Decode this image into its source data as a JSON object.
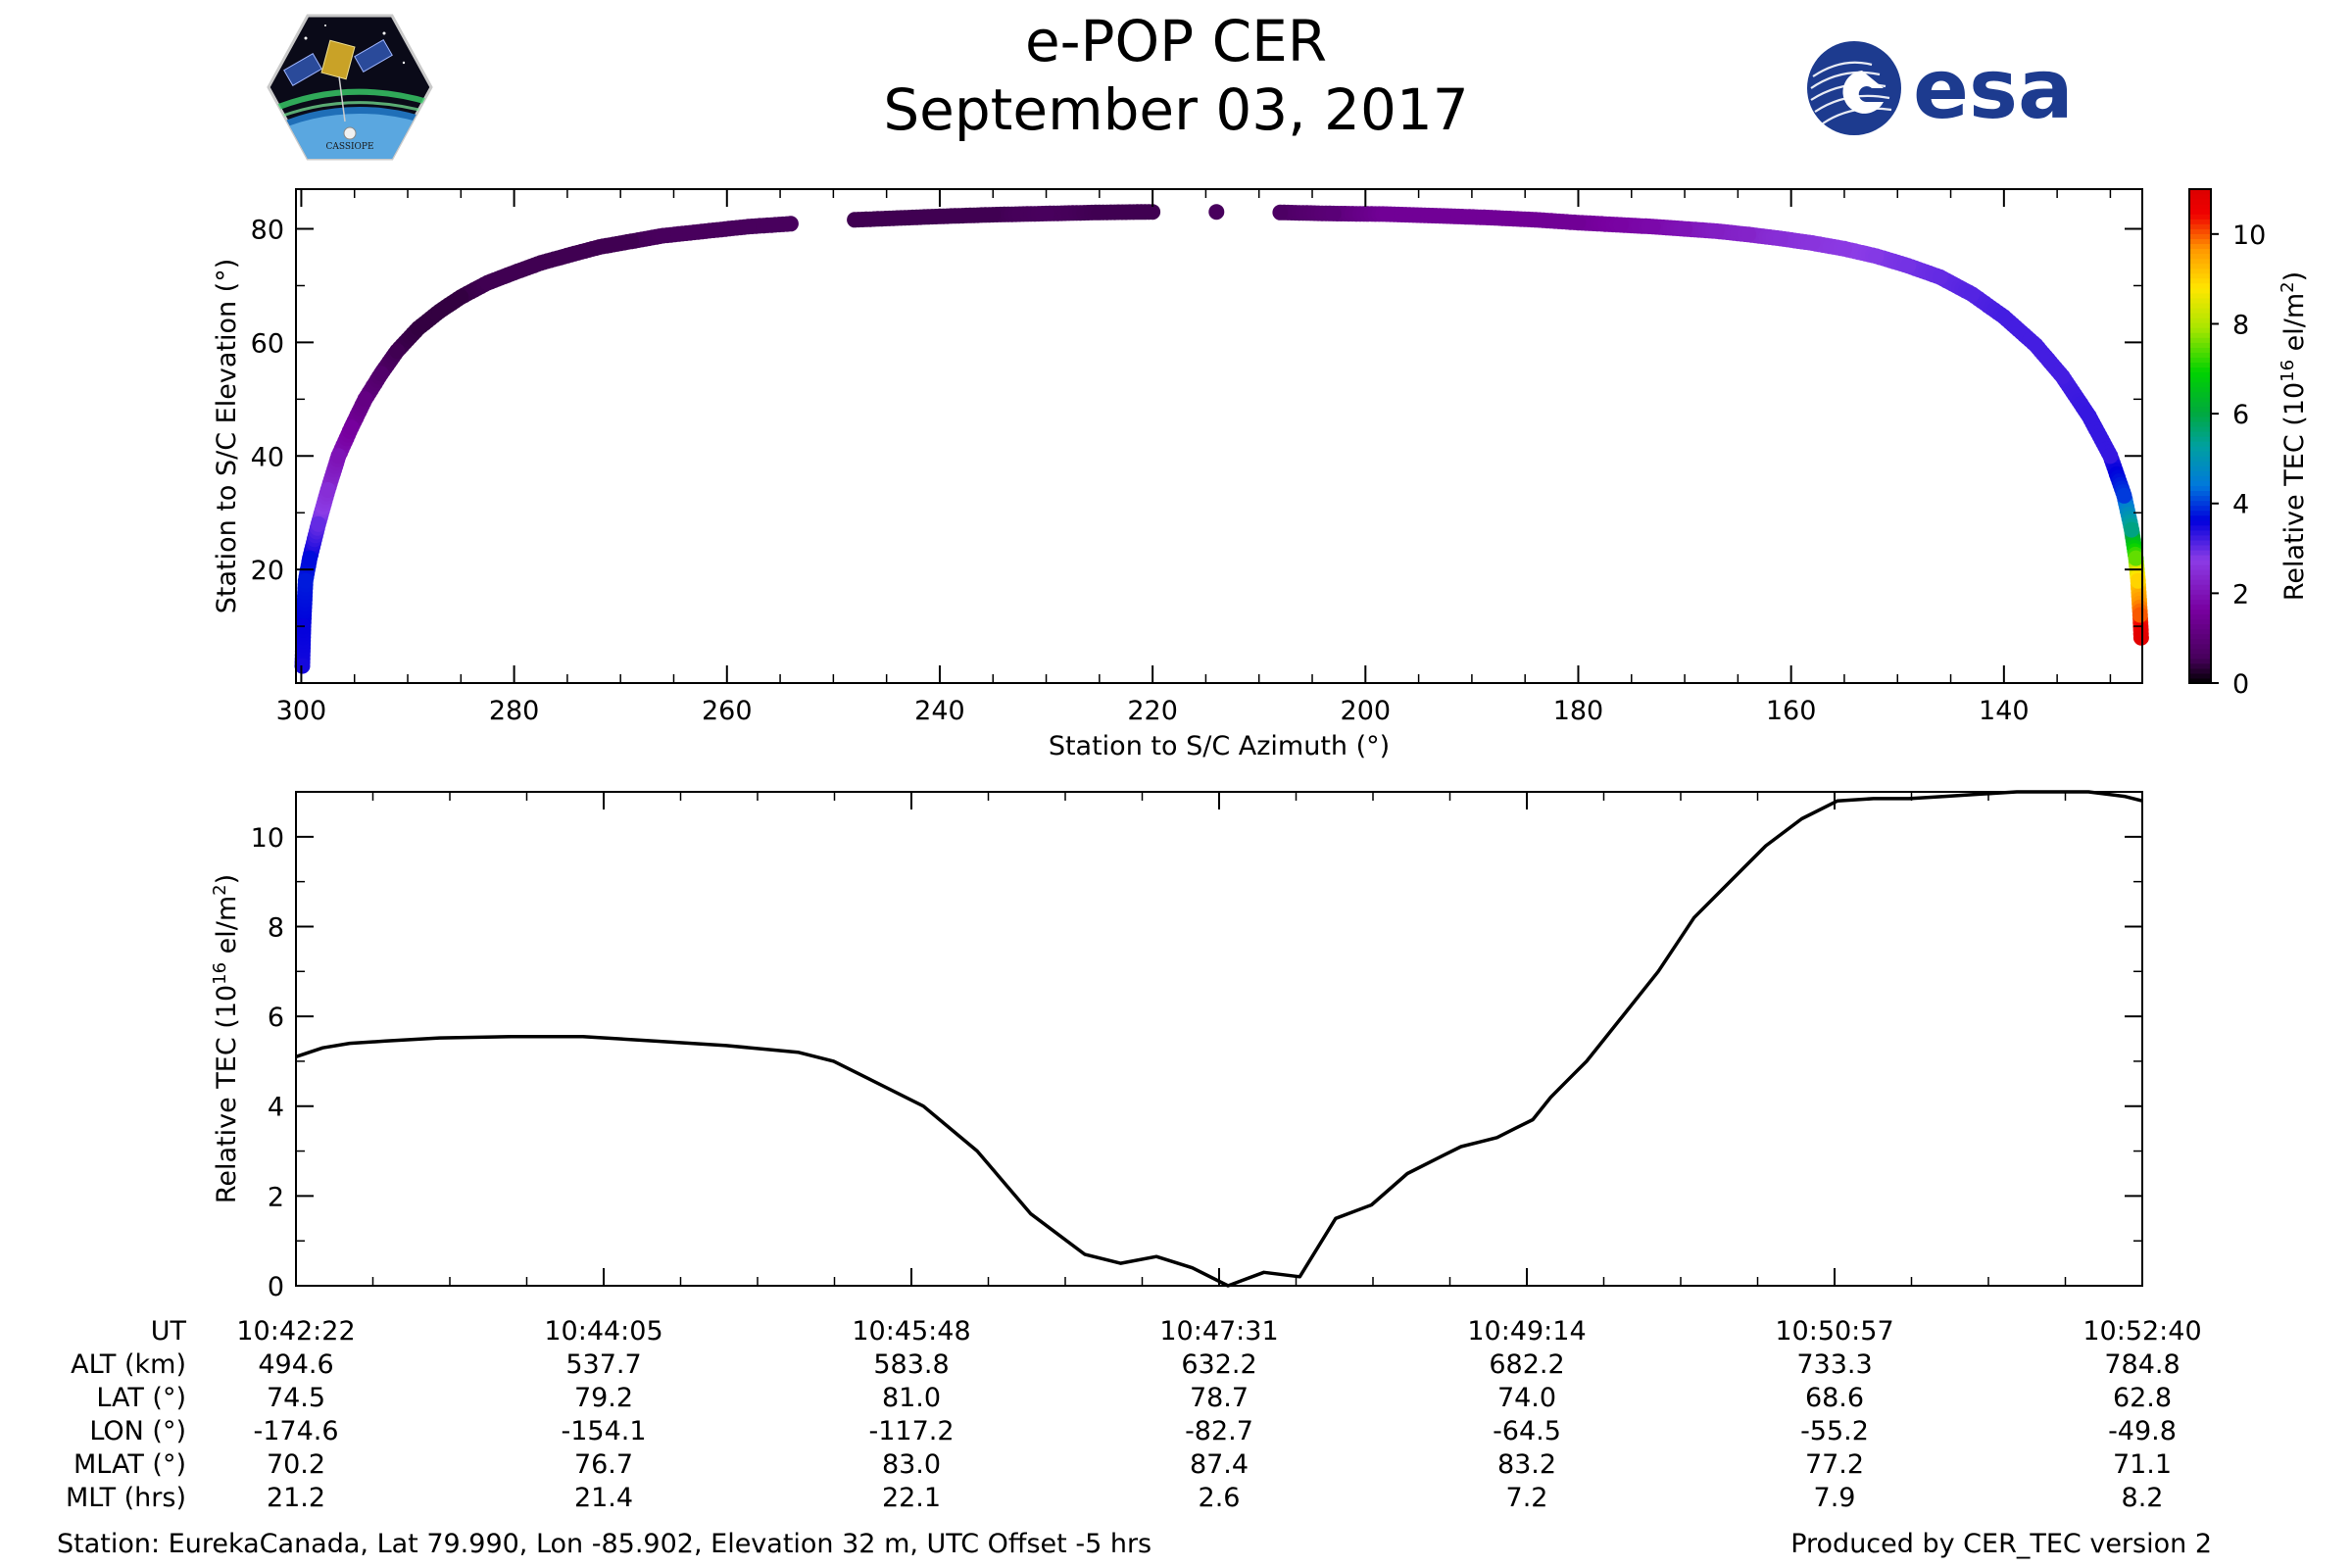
{
  "title": "e-POP CER",
  "date": "September 03, 2017",
  "logos": {
    "left": "CASSIOPE",
    "right": "esa"
  },
  "footer": {
    "station": "Station: EurekaCanada, Lat 79.990, Lon -85.902, Elevation 32 m, UTC Offset -5 hrs",
    "produced": "Produced by CER_TEC version 2"
  },
  "info_table": {
    "rows": [
      {
        "label": "UT",
        "values": [
          "10:42:22",
          "10:44:05",
          "10:45:48",
          "10:47:31",
          "10:49:14",
          "10:50:57",
          "10:52:40"
        ]
      },
      {
        "label": "ALT (km)",
        "values": [
          "494.6",
          "537.7",
          "583.8",
          "632.2",
          "682.2",
          "733.3",
          "784.8"
        ]
      },
      {
        "label": "LAT (°)",
        "values": [
          "74.5",
          "79.2",
          "81.0",
          "78.7",
          "74.0",
          "68.6",
          "62.8"
        ]
      },
      {
        "label": "LON (°)",
        "values": [
          "-174.6",
          "-154.1",
          "-117.2",
          "-82.7",
          "-64.5",
          "-55.2",
          "-49.8"
        ]
      },
      {
        "label": "MLAT (°)",
        "values": [
          "70.2",
          "76.7",
          "83.0",
          "87.4",
          "83.2",
          "77.2",
          "71.1"
        ]
      },
      {
        "label": "MLT (hrs)",
        "values": [
          "21.2",
          "21.4",
          "22.1",
          "2.6",
          "7.2",
          "7.9",
          "8.2"
        ]
      }
    ]
  },
  "colors": {
    "line": "#000000",
    "axis": "#000000",
    "esa_blue": "#1d3b8f"
  },
  "chart_data": [
    {
      "type": "scatter",
      "title": "",
      "xlabel": "Station to S/C Azimuth (°)",
      "ylabel": "Station to S/C Elevation (°)",
      "xlim": [
        300.5,
        127
      ],
      "ylim": [
        0,
        87
      ],
      "xticks": [
        300,
        280,
        260,
        240,
        220,
        200,
        180,
        160,
        140
      ],
      "yticks": [
        20,
        40,
        60,
        80
      ],
      "color_by": "Relative TEC",
      "colorbar": {
        "label": "Relative TEC (10^16 el/m^2)",
        "range": [
          0,
          11
        ],
        "ticks": [
          0,
          2,
          4,
          6,
          8,
          10
        ],
        "colormap": "nipy_spectral"
      },
      "dots": [
        [
          299.9,
          3,
          3.5
        ],
        [
          299.8,
          10,
          3.6
        ],
        [
          299.6,
          18,
          3.8
        ],
        [
          299.2,
          22,
          3.7
        ],
        [
          298.4,
          28,
          3.0
        ],
        [
          297.5,
          34,
          2.5
        ],
        [
          296.5,
          40,
          2.0
        ],
        [
          295.3,
          45,
          1.6
        ],
        [
          294.0,
          50,
          1.2
        ],
        [
          292.5,
          54.5,
          0.8
        ],
        [
          291.0,
          58.5,
          0.5
        ],
        [
          289.0,
          62.5,
          0.4
        ],
        [
          287.0,
          65.5,
          0.4
        ],
        [
          285.0,
          68,
          0.4
        ],
        [
          282.5,
          70.5,
          0.5
        ],
        [
          280.0,
          72.3,
          0.5
        ],
        [
          277.5,
          74,
          0.5
        ],
        [
          275.0,
          75.3,
          0.5
        ],
        [
          272.0,
          76.8,
          0.5
        ],
        [
          269.0,
          77.8,
          0.5
        ],
        [
          266.0,
          78.8,
          0.6
        ],
        [
          262.0,
          79.6,
          0.6
        ],
        [
          258.0,
          80.4,
          0.6
        ],
        [
          254.0,
          80.9,
          0.6
        ],
        [
          248.0,
          81.6,
          0.5
        ],
        [
          244.0,
          81.9,
          0.5
        ],
        [
          240.0,
          82.2,
          0.5
        ],
        [
          235.0,
          82.5,
          0.5
        ],
        [
          230.0,
          82.7,
          0.6
        ],
        [
          225.0,
          82.9,
          0.5
        ],
        [
          220.0,
          83,
          0.5
        ],
        [
          214.0,
          83,
          0.6
        ],
        [
          208.0,
          82.9,
          0.7
        ],
        [
          203.0,
          82.7,
          1.0
        ],
        [
          198.0,
          82.6,
          1.5
        ],
        [
          193.0,
          82.3,
          1.5
        ],
        [
          188.5,
          82.0,
          1.5
        ],
        [
          184.0,
          81.6,
          1.5
        ],
        [
          180.0,
          81.1,
          1.5
        ],
        [
          176.0,
          80.7,
          1.7
        ],
        [
          173.0,
          80.4,
          1.8
        ],
        [
          170.0,
          80,
          2.0
        ],
        [
          167.0,
          79.6,
          2.2
        ],
        [
          164.0,
          79,
          2.3
        ],
        [
          161.0,
          78.3,
          2.5
        ],
        [
          158.0,
          77.5,
          2.6
        ],
        [
          155.0,
          76.5,
          2.7
        ],
        [
          152.0,
          75.2,
          2.8
        ],
        [
          149.0,
          73.5,
          2.9
        ],
        [
          146.0,
          71.5,
          3.0
        ],
        [
          143.0,
          68.5,
          3.1
        ],
        [
          140.0,
          64.5,
          3.2
        ],
        [
          137.0,
          59.5,
          3.2
        ],
        [
          134.5,
          54,
          3.2
        ],
        [
          132.0,
          47,
          3.3
        ],
        [
          130.0,
          40,
          3.3
        ],
        [
          128.7,
          33,
          4.0
        ],
        [
          128.0,
          27,
          5.5
        ],
        [
          127.6,
          22,
          7.5
        ],
        [
          127.4,
          18,
          9.0
        ],
        [
          127.2,
          12,
          10.0
        ],
        [
          127.1,
          8,
          10.8
        ]
      ]
    },
    {
      "type": "line",
      "title": "",
      "xlabel": "UT",
      "ylabel": "Relative TEC (10^16 el/m^2)",
      "xlim_minutes": [
        0,
        10.3
      ],
      "ylim": [
        0,
        11
      ],
      "yticks": [
        0,
        2,
        4,
        6,
        8,
        10
      ],
      "xtick_labels": [
        "10:42:22",
        "10:44:05",
        "10:45:48",
        "10:47:31",
        "10:49:14",
        "10:50:57",
        "10:52:40"
      ],
      "series": [
        {
          "name": "Relative TEC",
          "x": [
            0,
            0.15,
            0.3,
            0.5,
            0.8,
            1.2,
            1.6,
            2.0,
            2.4,
            2.8,
            3.0,
            3.2,
            3.5,
            3.8,
            4.1,
            4.4,
            4.6,
            4.8,
            5.0,
            5.2,
            5.4,
            5.6,
            5.8,
            6.0,
            6.2,
            6.4,
            6.5,
            6.6,
            6.7,
            6.8,
            6.9,
            7.0,
            7.1,
            7.2,
            7.3,
            7.4,
            7.6,
            7.8,
            8.0,
            8.2,
            8.4,
            8.6,
            8.8,
            9.0,
            9.2,
            9.4,
            9.6,
            9.8,
            10.0,
            10.2,
            10.3
          ],
          "values": [
            5.1,
            5.3,
            5.4,
            5.45,
            5.52,
            5.55,
            5.55,
            5.45,
            5.35,
            5.2,
            5.0,
            4.6,
            4.0,
            3.0,
            1.6,
            0.7,
            0.5,
            0.65,
            0.4,
            0.0,
            0.3,
            0.2,
            1.5,
            1.8,
            2.5,
            2.9,
            3.1,
            3.2,
            3.3,
            3.5,
            3.7,
            4.2,
            4.6,
            5.0,
            5.5,
            6.0,
            7.0,
            8.2,
            9.0,
            9.8,
            10.4,
            10.8,
            10.85,
            10.85,
            10.9,
            10.95,
            11.0,
            11.0,
            11.0,
            10.9,
            10.8
          ]
        }
      ]
    }
  ]
}
